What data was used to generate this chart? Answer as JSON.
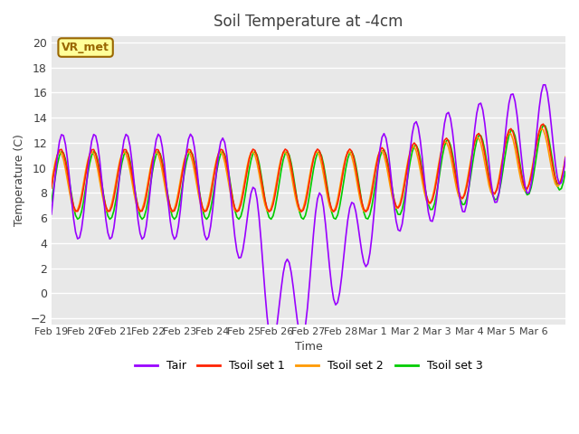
{
  "title": "Soil Temperature at -4cm",
  "xlabel": "Time",
  "ylabel": "Temperature (C)",
  "ylim": [
    -2.5,
    20.5
  ],
  "yticks": [
    -2,
    0,
    2,
    4,
    6,
    8,
    10,
    12,
    14,
    16,
    18,
    20
  ],
  "xtick_labels": [
    "Feb 19",
    "Feb 20",
    "Feb 21",
    "Feb 22",
    "Feb 23",
    "Feb 24",
    "Feb 25",
    "Feb 26",
    "Feb 27",
    "Feb 28",
    "Mar 1",
    "Mar 2",
    "Mar 3",
    "Mar 4",
    "Mar 5",
    "Mar 6"
  ],
  "colors": {
    "Tair": "#9900ff",
    "Tsoil1": "#ff2200",
    "Tsoil2": "#ff9900",
    "Tsoil3": "#00cc00"
  },
  "background_color": "#ffffff",
  "plot_bg_color": "#e8e8e8",
  "grid_color": "#ffffff",
  "annotation_text": "VR_met",
  "annotation_bg": "#ffff99",
  "annotation_border": "#996600",
  "title_color": "#404040",
  "label_color": "#404040"
}
